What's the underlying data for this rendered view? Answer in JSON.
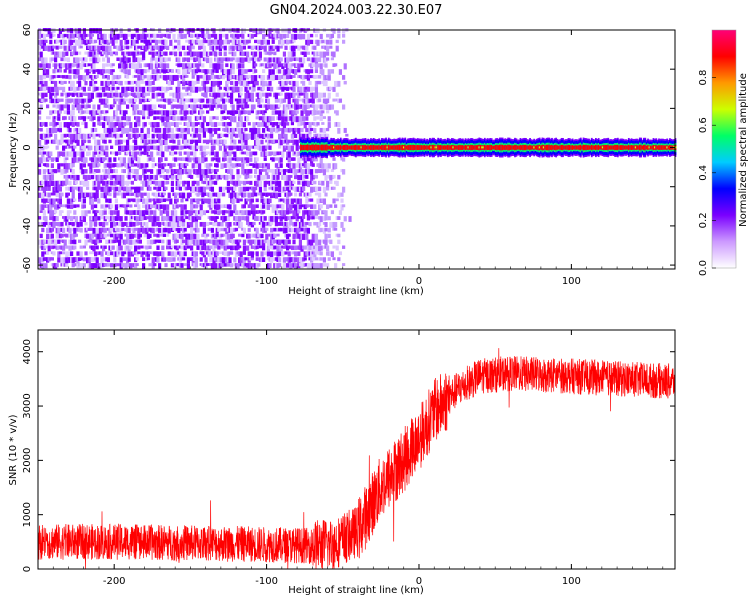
{
  "title": "GN04.2024.003.22.30.E07",
  "chart_data": [
    {
      "type": "heatmap",
      "xlabel": "Height of straight line (km)",
      "ylabel": "Frequency (Hz)",
      "xlim": [
        -250,
        168
      ],
      "ylim": [
        -62,
        60
      ],
      "x_ticks": [
        "-200",
        "-100",
        "0",
        "100"
      ],
      "y_ticks": [
        "-60",
        "-40",
        "-20",
        "0",
        "20",
        "40",
        "60"
      ],
      "colorbar": {
        "label": "Normalized spectral amplitude",
        "range": [
          0,
          1
        ],
        "ticks": [
          "0.0",
          "0.2",
          "0.4",
          "0.6",
          "0.8"
        ],
        "colormap": [
          "#ffffff",
          "#cc99ff",
          "#7a00ff",
          "#0000ff",
          "#00ccff",
          "#00ff66",
          "#ccff00",
          "#ff9900",
          "#ff0000",
          "#ff0077"
        ]
      },
      "features": {
        "broadband_noise_x_range": [
          -250,
          -70
        ],
        "noise_taper_x_range": [
          -70,
          -45
        ],
        "signal_line_frequency": 0,
        "signal_line_x_range": [
          -78,
          168
        ],
        "signal_color": "#ff0000"
      }
    },
    {
      "type": "line",
      "xlabel": "Height of straight line (km)",
      "ylabel": "SNR (10 * v/v)",
      "xlim": [
        -250,
        168
      ],
      "ylim": [
        0,
        4400
      ],
      "x_ticks": [
        "-200",
        "-100",
        "0",
        "100"
      ],
      "y_ticks": [
        "0",
        "1000",
        "2000",
        "3000",
        "4000"
      ],
      "series_color": "#ff0000",
      "profile": {
        "x": [
          -250,
          -200,
          -150,
          -100,
          -70,
          -55,
          -40,
          -25,
          -10,
          0,
          10,
          25,
          40,
          60,
          100,
          130,
          168
        ],
        "y": [
          500,
          500,
          480,
          450,
          430,
          470,
          700,
          1500,
          2000,
          2400,
          2900,
          3300,
          3550,
          3600,
          3550,
          3500,
          3450
        ]
      }
    }
  ]
}
